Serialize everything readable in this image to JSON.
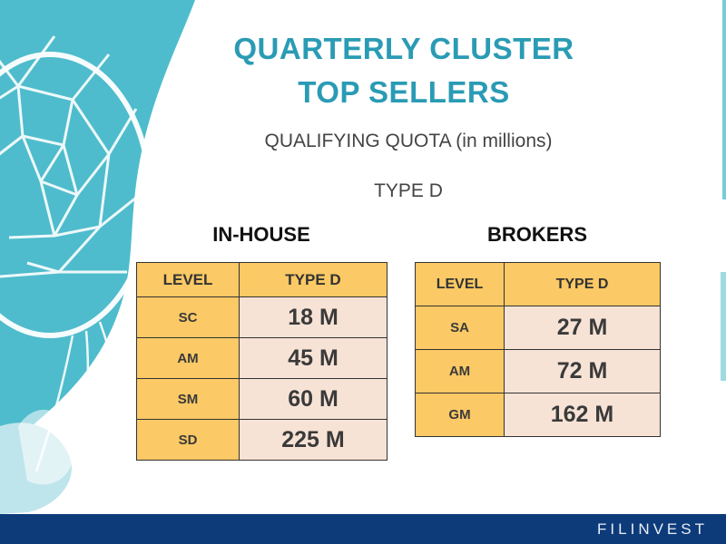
{
  "title": {
    "line1": "QUARTERLY CLUSTER",
    "line2": "TOP SELLERS"
  },
  "subtitle": "QUALIFYING QUOTA (in millions)",
  "type_label": "TYPE D",
  "inhouse": {
    "title": "IN-HOUSE",
    "headers": [
      "LEVEL",
      "TYPE D"
    ],
    "rows": [
      {
        "level": "SC",
        "value": "18 M"
      },
      {
        "level": "AM",
        "value": "45 M"
      },
      {
        "level": "SM",
        "value": "60 M"
      },
      {
        "level": "SD",
        "value": "225 M"
      }
    ]
  },
  "brokers": {
    "title": "BROKERS",
    "headers": [
      "LEVEL",
      "TYPE D"
    ],
    "rows": [
      {
        "level": "SA",
        "value": "27 M"
      },
      {
        "level": "AM",
        "value": "72 M"
      },
      {
        "level": "GM",
        "value": "162 M"
      }
    ]
  },
  "footer": {
    "brand": "FILINVEST"
  },
  "colors": {
    "title": "#2a9bb4",
    "header_fill": "#fbc965",
    "value_fill": "#f7e3d6",
    "footer_bar": "#0d3b7a",
    "art": "#3fb6c8"
  }
}
